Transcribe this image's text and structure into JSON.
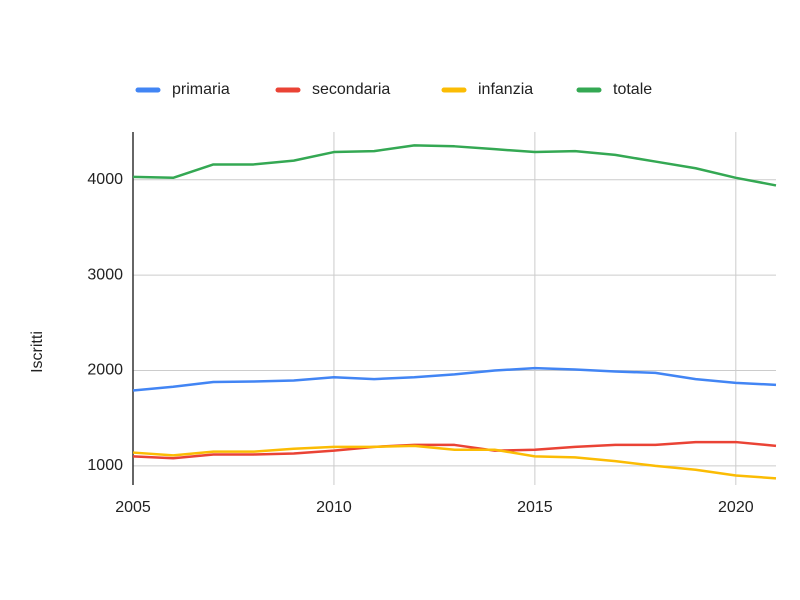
{
  "chart_data": {
    "type": "line",
    "y_label": "Iscritti",
    "x": [
      2005,
      2006,
      2007,
      2008,
      2009,
      2010,
      2011,
      2012,
      2013,
      2014,
      2015,
      2016,
      2017,
      2018,
      2019,
      2020,
      2021
    ],
    "series": [
      {
        "name": "primaria",
        "color": "#4285f4",
        "values": [
          1790,
          1830,
          1880,
          1885,
          1895,
          1930,
          1910,
          1930,
          1960,
          2000,
          2025,
          2010,
          1990,
          1975,
          1910,
          1870,
          1850
        ]
      },
      {
        "name": "secondaria",
        "color": "#ea4335",
        "values": [
          1100,
          1080,
          1120,
          1120,
          1130,
          1160,
          1200,
          1220,
          1220,
          1160,
          1170,
          1200,
          1220,
          1220,
          1250,
          1250,
          1210
        ]
      },
      {
        "name": "infanzia",
        "color": "#fbbc04",
        "values": [
          1140,
          1110,
          1150,
          1150,
          1180,
          1200,
          1200,
          1210,
          1170,
          1170,
          1100,
          1090,
          1050,
          1000,
          960,
          900,
          870
        ]
      },
      {
        "name": "totale",
        "color": "#34a853",
        "values": [
          4030,
          4020,
          4160,
          4160,
          4200,
          4290,
          4300,
          4360,
          4350,
          4320,
          4290,
          4300,
          4260,
          4190,
          4120,
          4020,
          3940
        ]
      }
    ],
    "xlim": [
      2005,
      2021
    ],
    "xticks": [
      2005,
      2010,
      2015,
      2020
    ],
    "ylim": [
      800,
      4500
    ],
    "yticks": [
      1000,
      2000,
      3000,
      4000
    ],
    "grid": true
  }
}
